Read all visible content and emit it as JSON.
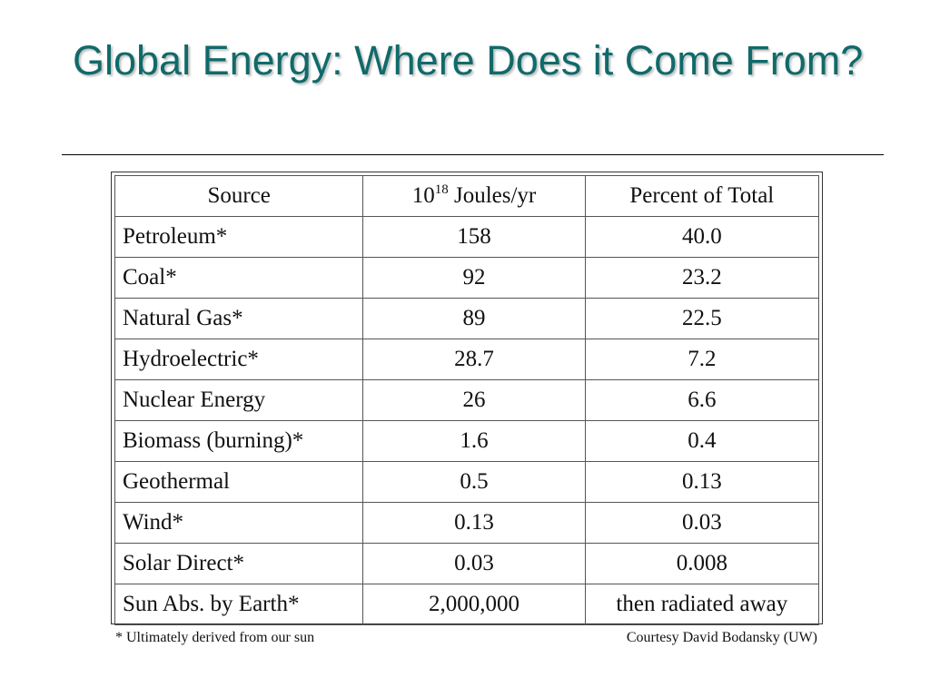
{
  "slide": {
    "title": "Global Energy: Where Does it Come From?",
    "footnote": "* Ultimately derived from our sun",
    "credit": "Courtesy David Bodansky (UW)"
  },
  "table": {
    "headers": {
      "source": "Source",
      "joules_base": "10",
      "joules_exp": "18",
      "joules_unit": " Joules/yr",
      "percent": "Percent of Total"
    },
    "rows": [
      {
        "source": "Petroleum*",
        "joules": "158",
        "percent": "40.0"
      },
      {
        "source": "Coal*",
        "joules": "92",
        "percent": "23.2"
      },
      {
        "source": "Natural Gas*",
        "joules": "89",
        "percent": "22.5"
      },
      {
        "source": "Hydroelectric*",
        "joules": "28.7",
        "percent": "7.2"
      },
      {
        "source": "Nuclear Energy",
        "joules": "26",
        "percent": "6.6"
      },
      {
        "source": "Biomass (burning)*",
        "joules": "1.6",
        "percent": "0.4"
      },
      {
        "source": "Geothermal",
        "joules": "0.5",
        "percent": "0.13"
      },
      {
        "source": "Wind*",
        "joules": "0.13",
        "percent": "0.03"
      },
      {
        "source": "Solar Direct*",
        "joules": "0.03",
        "percent": "0.008"
      },
      {
        "source": "Sun Abs. by Earth*",
        "joules": "2,000,000",
        "percent": "then radiated away"
      }
    ]
  },
  "colors": {
    "title": "#116a6a",
    "rule": "#000000",
    "table_border": "#555555"
  }
}
